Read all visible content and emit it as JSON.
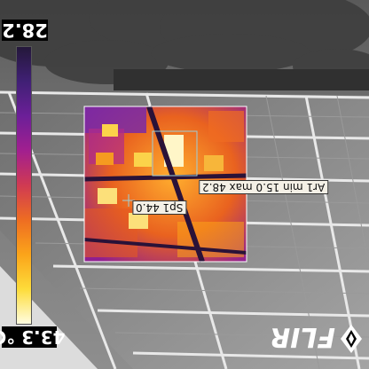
{
  "scale": {
    "max_label": "28.2",
    "min_label": "43.3 °C",
    "palette": [
      "#24183a",
      "#402075",
      "#6c1f98",
      "#a21f8f",
      "#d03a52",
      "#ee6d22",
      "#fba41a",
      "#fddc3a",
      "#fffde0"
    ]
  },
  "measurements": {
    "spot_label": "Sp1 44.0",
    "area_label": "Ar1 min 15.0 max 48.2"
  },
  "brand": {
    "logo_text": "FLIR"
  }
}
